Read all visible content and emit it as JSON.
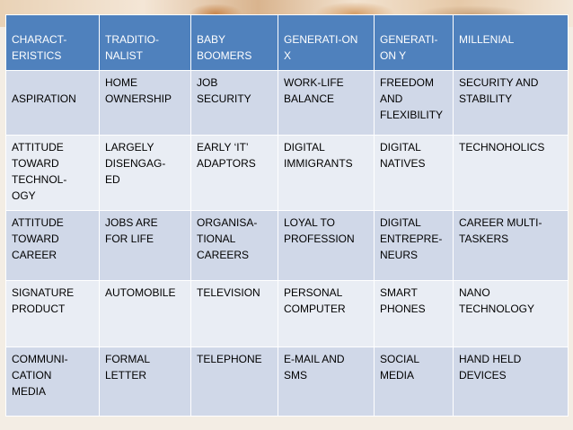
{
  "header": [
    "CHARACT-\nERISTICS",
    "TRADITIO-\nNALIST",
    "BABY\nBOOMERS",
    "GENERATI-ON\nX",
    "GENERATI-\nON Y",
    "MILLENIAL"
  ],
  "rows": [
    [
      "ASPIRATION",
      "HOME\nOWNERSHIP",
      "JOB\nSECURITY",
      "WORK-LIFE\nBALANCE",
      "FREEDOM\nAND\nFLEXIBILITY",
      "SECURITY AND\nSTABILITY"
    ],
    [
      "ATTITUDE\nTOWARD\nTECHNOL-\nOGY",
      "LARGELY\nDISENGAG-\nED",
      "EARLY ‘IT’\nADAPTORS",
      "DIGITAL\nIMMIGRANTS",
      "DIGITAL\nNATIVES",
      "TECHNOHOLICS"
    ],
    [
      "ATTITUDE\nTOWARD\nCAREER",
      "JOBS ARE\nFOR LIFE",
      "ORGANISA-\nTIONAL\nCAREERS",
      "LOYAL TO\nPROFESSION",
      "DIGITAL\nENTREPRE-\nNEURS",
      "CAREER MULTI-\nTASKERS"
    ],
    [
      "SIGNATURE\nPRODUCT",
      "AUTOMOBILE",
      "TELEVISION",
      "PERSONAL\nCOMPUTER",
      "SMART\nPHONES",
      "NANO\nTECHNOLOGY"
    ],
    [
      "COMMUNI-\nCATION\nMEDIA",
      "FORMAL\nLETTER",
      "TELEPHONE",
      "E-MAIL AND\nSMS",
      "SOCIAL\nMEDIA",
      "HAND HELD\nDEVICES"
    ]
  ]
}
